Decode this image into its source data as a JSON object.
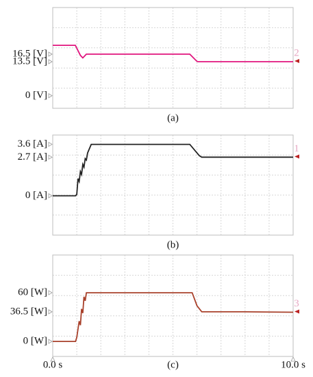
{
  "chart_data": [
    {
      "type": "line",
      "label": "(a)",
      "channel": "2",
      "ylim": [
        -5,
        35
      ],
      "xlim": [
        0,
        10
      ],
      "yticks": [
        {
          "value": 16.5,
          "label": "16.5 [V]"
        },
        {
          "value": 13.5,
          "label": "13.5 [V]"
        },
        {
          "value": 0,
          "label": "0 [V]"
        }
      ],
      "grid_x": [
        0,
        1,
        2,
        3,
        4,
        5,
        6,
        7,
        8,
        9,
        10
      ],
      "grid_y": [
        -5,
        3,
        11,
        19,
        27,
        35
      ],
      "series": [
        {
          "color": "#e0147d",
          "x": [
            0,
            0.94,
            1.15,
            1.25,
            1.4,
            3,
            5.7,
            6.0,
            6.05,
            8,
            10
          ],
          "values": [
            20,
            20,
            16,
            15,
            16.5,
            16.5,
            16.5,
            13.6,
            13.5,
            13.5,
            13.5
          ]
        }
      ]
    },
    {
      "type": "line",
      "label": "(b)",
      "channel": "1",
      "ylim": [
        -2.75,
        4.25
      ],
      "xlim": [
        0,
        10
      ],
      "yticks": [
        {
          "value": 3.6,
          "label": "3.6 [A]"
        },
        {
          "value": 2.7,
          "label": "2.7 [A]"
        },
        {
          "value": 0,
          "label": "0 [A]"
        }
      ],
      "grid_x": [
        0,
        1,
        2,
        3,
        4,
        5,
        6,
        7,
        8,
        9,
        10
      ],
      "grid_y": [
        -2.75,
        -1.35,
        0.05,
        1.45,
        2.85,
        4.25
      ],
      "series": [
        {
          "color": "#222222",
          "x": [
            0,
            0.95,
            1.0,
            1.05,
            1.1,
            1.15,
            1.2,
            1.25,
            1.3,
            1.35,
            1.4,
            1.45,
            1.5,
            1.6,
            3,
            5.7,
            5.9,
            6.1,
            6.2,
            8,
            10
          ],
          "values": [
            0,
            0,
            0.1,
            1.2,
            1.0,
            1.7,
            1.5,
            2.2,
            2.0,
            2.6,
            2.5,
            3.0,
            3.2,
            3.6,
            3.6,
            3.6,
            3.2,
            2.8,
            2.7,
            2.7,
            2.7
          ]
        }
      ]
    },
    {
      "type": "line",
      "label": "(c)",
      "channel": "3",
      "ylim": [
        -18.5,
        106.5
      ],
      "xlim": [
        0,
        10
      ],
      "yticks": [
        {
          "value": 60,
          "label": "60 [W]"
        },
        {
          "value": 36.5,
          "label": "36.5 [W]"
        },
        {
          "value": 0,
          "label": "0 [W]"
        }
      ],
      "xticks": [
        {
          "value": 0,
          "label": "0.0 s"
        },
        {
          "value": 10,
          "label": "10.0 s"
        }
      ],
      "grid_x": [
        0,
        1,
        2,
        3,
        4,
        5,
        6,
        7,
        8,
        9,
        10
      ],
      "grid_y": [
        -18.5,
        6.5,
        31.5,
        56.5,
        81.5,
        106.5
      ],
      "series": [
        {
          "color": "#a8402a",
          "x": [
            0,
            0.95,
            1.0,
            1.1,
            1.15,
            1.2,
            1.25,
            1.3,
            1.35,
            1.4,
            1.5,
            3,
            5.8,
            6.0,
            6.2,
            8,
            10
          ],
          "values": [
            0,
            0,
            5,
            25,
            20,
            40,
            35,
            55,
            50,
            60,
            60,
            60,
            60,
            44,
            36.5,
            36.5,
            36
          ]
        }
      ]
    }
  ]
}
